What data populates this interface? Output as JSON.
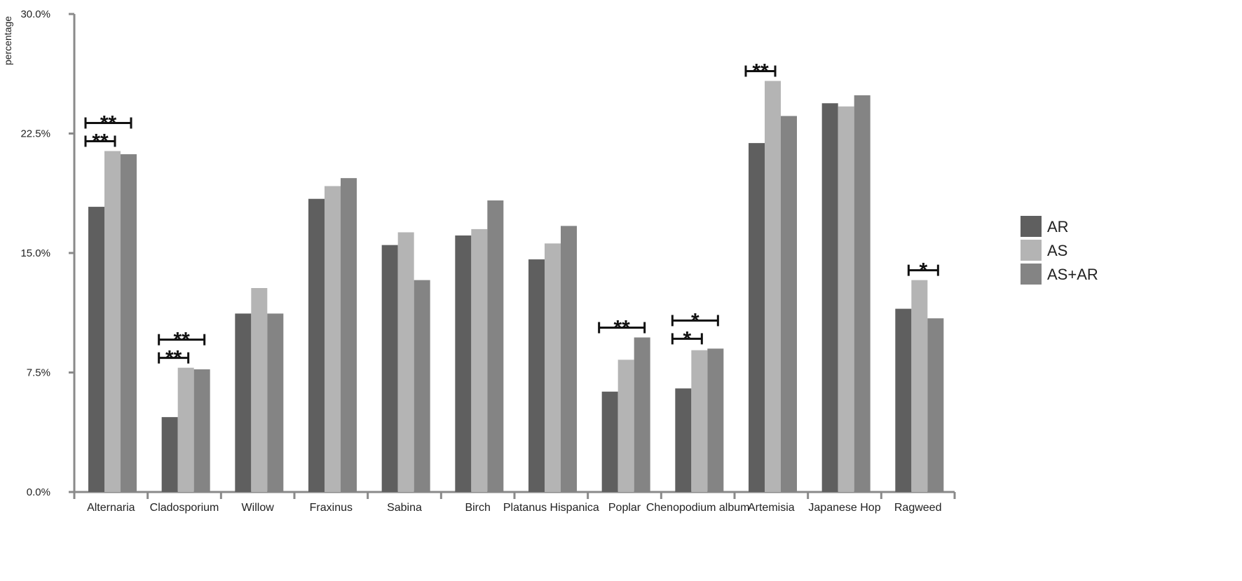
{
  "chart_data": {
    "type": "bar",
    "title": "",
    "xlabel": "",
    "ylabel": "percentage",
    "ylim": [
      0,
      30
    ],
    "y_ticks": [
      "0.0%",
      "7.5%",
      "15.0%",
      "22.5%",
      "30.0%"
    ],
    "y_tick_values": [
      0,
      7.5,
      15,
      22.5,
      30
    ],
    "grid": false,
    "legend_position": "right",
    "categories": [
      "Alternaria",
      "Cladosporium",
      "Willow",
      "Fraxinus",
      "Sabina",
      "Birch",
      "Platanus Hispanica",
      "Poplar",
      "Chenopodium album",
      "Artemisia",
      "Japanese Hop",
      "Ragweed"
    ],
    "series": [
      {
        "name": "AR",
        "color": "#5f5f5f",
        "values": [
          17.9,
          4.7,
          11.2,
          18.4,
          15.5,
          16.1,
          14.6,
          6.3,
          6.5,
          21.9,
          24.4,
          11.5
        ]
      },
      {
        "name": "AS",
        "color": "#b4b4b4",
        "values": [
          21.4,
          7.8,
          12.8,
          19.2,
          16.3,
          16.5,
          15.6,
          8.3,
          8.9,
          25.8,
          24.2,
          13.3
        ]
      },
      {
        "name": "AS+AR",
        "color": "#848484",
        "values": [
          21.2,
          7.7,
          11.2,
          19.7,
          13.3,
          18.3,
          16.7,
          9.7,
          9.0,
          23.6,
          24.9,
          10.9
        ]
      }
    ],
    "significance": [
      {
        "category": 0,
        "from": 0,
        "to": 1,
        "label": "**"
      },
      {
        "category": 0,
        "from": 0,
        "to": 2,
        "label": "**"
      },
      {
        "category": 1,
        "from": 0,
        "to": 1,
        "label": "**"
      },
      {
        "category": 1,
        "from": 0,
        "to": 2,
        "label": "**"
      },
      {
        "category": 7,
        "from": 0,
        "to": 2,
        "label": "**"
      },
      {
        "category": 8,
        "from": 0,
        "to": 1,
        "label": "*"
      },
      {
        "category": 8,
        "from": 0,
        "to": 2,
        "label": "*"
      },
      {
        "category": 9,
        "from": 0,
        "to": 1,
        "label": "**"
      },
      {
        "category": 11,
        "from": 1,
        "to": 2,
        "label": "*"
      }
    ]
  }
}
